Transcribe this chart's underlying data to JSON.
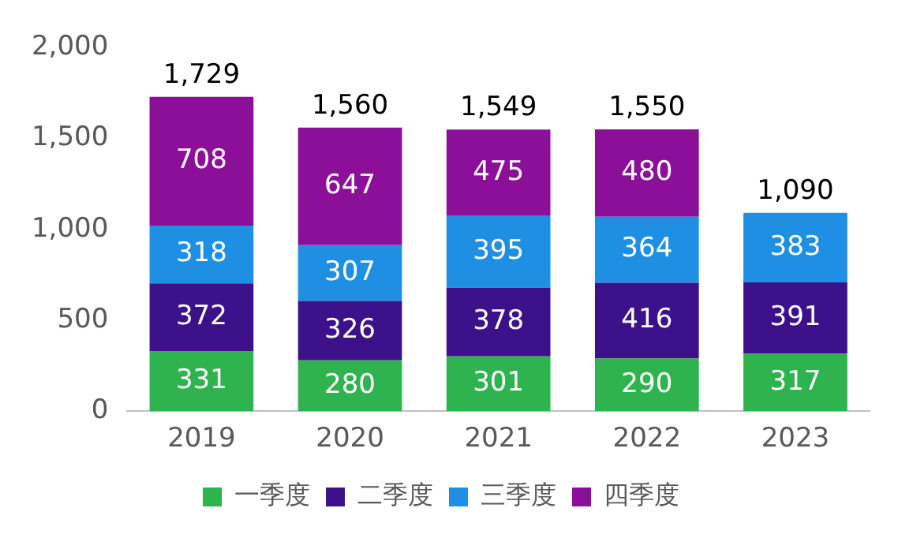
{
  "chart_data": {
    "type": "bar",
    "stacked": true,
    "categories": [
      "2019",
      "2020",
      "2021",
      "2022",
      "2023"
    ],
    "series": [
      {
        "name": "一季度",
        "color": "#2fb34f",
        "values": [
          331,
          280,
          301,
          290,
          317
        ]
      },
      {
        "name": "二季度",
        "color": "#3d118a",
        "values": [
          372,
          326,
          378,
          416,
          391
        ]
      },
      {
        "name": "三季度",
        "color": "#1f8fe3",
        "values": [
          318,
          307,
          395,
          364,
          383
        ]
      },
      {
        "name": "四季度",
        "color": "#8c0f99",
        "values": [
          708,
          647,
          475,
          480,
          null
        ]
      }
    ],
    "ylim": [
      0,
      2000
    ],
    "yticks": [
      0,
      500,
      {
        "value": 1000,
        "label": "1,000"
      },
      {
        "value": 1500,
        "label": "1,500"
      },
      {
        "value": 2000,
        "label": "2,000"
      }
    ],
    "data_labels": true,
    "totals": [
      "1,729",
      "1,560",
      "1,549",
      "1,550",
      "1,090"
    ],
    "grid": false,
    "legend": "bottom"
  }
}
